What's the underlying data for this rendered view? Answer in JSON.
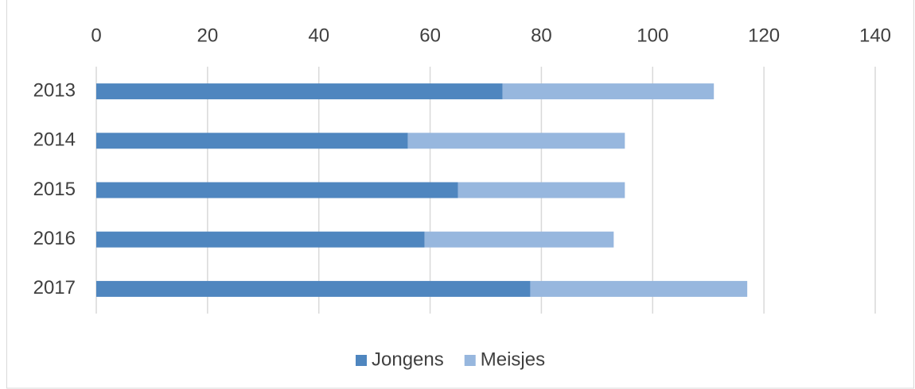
{
  "chart_data": {
    "type": "bar",
    "orientation": "horizontal",
    "stacked": true,
    "categories": [
      "2013",
      "2014",
      "2015",
      "2016",
      "2017"
    ],
    "series": [
      {
        "name": "Jongens",
        "color": "#4f86bf",
        "values": [
          73,
          56,
          65,
          59,
          78
        ]
      },
      {
        "name": "Meisjes",
        "color": "#97b7de",
        "values": [
          38,
          39,
          30,
          34,
          39
        ]
      }
    ],
    "xlim": [
      0,
      140
    ],
    "xticks": [
      0,
      20,
      40,
      60,
      80,
      100,
      120,
      140
    ],
    "grid": true,
    "legend": "bottom"
  }
}
